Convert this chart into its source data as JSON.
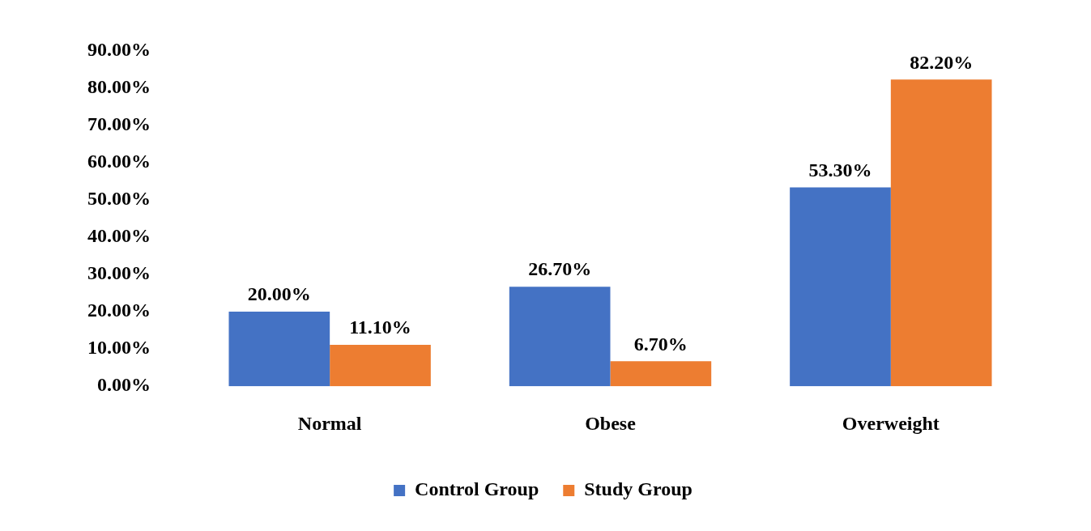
{
  "chart_data": {
    "type": "bar",
    "categories": [
      "Normal",
      "Obese",
      "Overweight"
    ],
    "series": [
      {
        "name": "Control Group",
        "color": "#4472c4",
        "values": [
          20.0,
          26.7,
          53.3
        ],
        "value_labels": [
          "20.00%",
          "26.70%",
          "53.30%"
        ]
      },
      {
        "name": "Study Group",
        "color": "#ed7d31",
        "values": [
          11.1,
          6.7,
          82.2
        ],
        "value_labels": [
          "11.10%",
          "6.70%",
          "82.20%"
        ]
      }
    ],
    "ylim": [
      0,
      90
    ],
    "yticks": [
      {
        "value": 0,
        "label": "0.00%"
      },
      {
        "value": 10,
        "label": "10.00%"
      },
      {
        "value": 20,
        "label": "20.00%"
      },
      {
        "value": 30,
        "label": "30.00%"
      },
      {
        "value": 40,
        "label": "40.00%"
      },
      {
        "value": 50,
        "label": "50.00%"
      },
      {
        "value": 60,
        "label": "60.00%"
      },
      {
        "value": 70,
        "label": "70.00%"
      },
      {
        "value": 80,
        "label": "80.00%"
      },
      {
        "value": 90,
        "label": "90.00%"
      }
    ],
    "grid": false,
    "legend": "bottom"
  }
}
